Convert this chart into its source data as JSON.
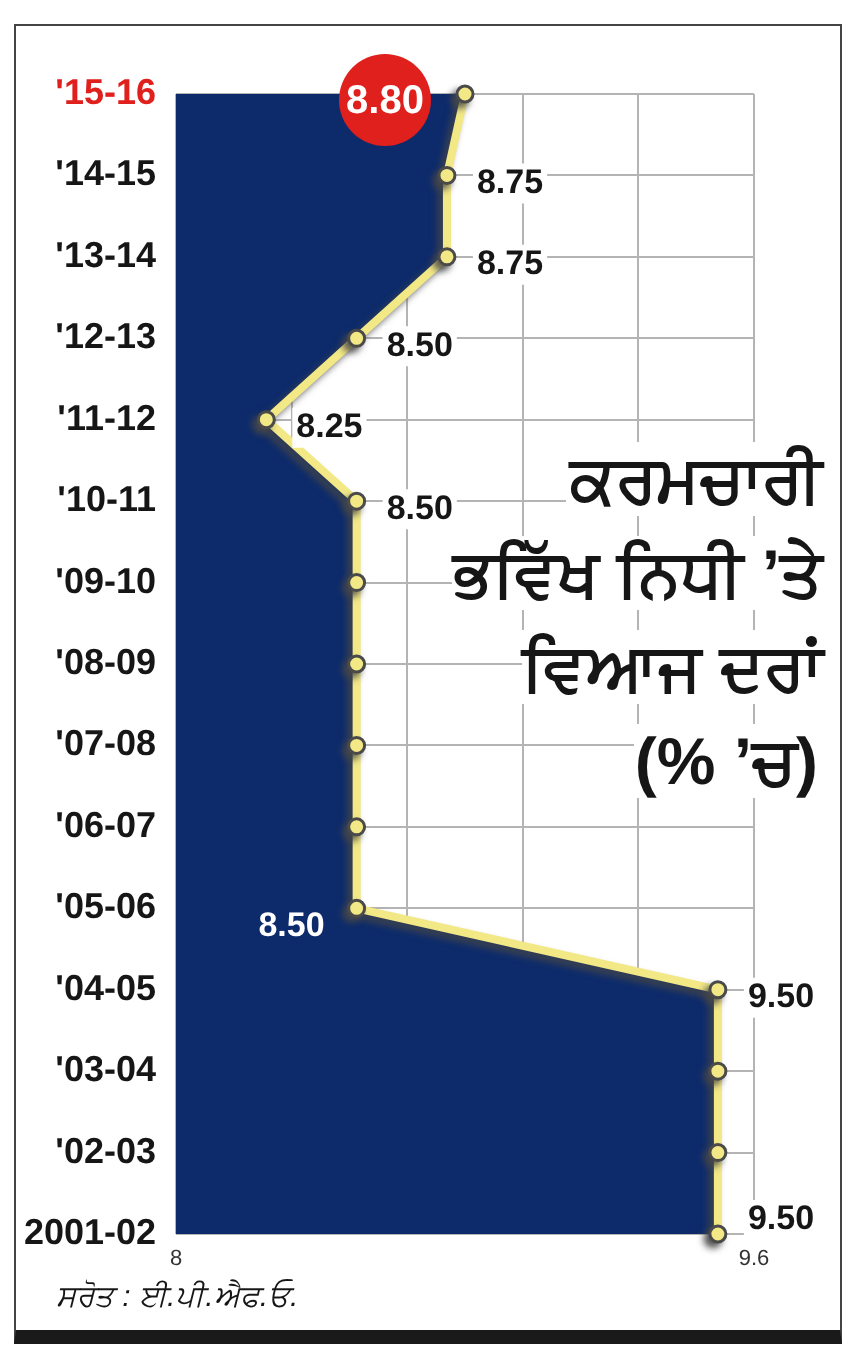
{
  "chart_data": {
    "type": "area",
    "orientation": "horizontal",
    "title": "ਕਰਮਚਾਰੀ\nਭਵਿੱਖ ਨਿਧੀ ’ਤੇ\nਵਿਆਜ ਦਰਾਂ\n(% ’ਚ)",
    "categories": [
      "'15-16",
      "'14-15",
      "'13-14",
      "'12-13",
      "'11-12",
      "'10-11",
      "'09-10",
      "'08-09",
      "'07-08",
      "'06-07",
      "'05-06",
      "'04-05",
      "'03-04",
      "'02-03",
      "2001-02"
    ],
    "series": [
      {
        "color": "#0d2b6b",
        "values": [
          8.8,
          8.75,
          8.75,
          8.5,
          8.25,
          8.5,
          8.5,
          8.5,
          8.5,
          8.5,
          8.5,
          9.5,
          9.5,
          9.5,
          9.5
        ]
      },
      {
        "type": "line",
        "color": "#f2e886",
        "marker": "circle",
        "values": [
          8.8,
          8.75,
          8.75,
          8.5,
          8.25,
          8.5,
          8.5,
          8.5,
          8.5,
          8.5,
          8.5,
          9.5,
          9.5,
          9.5,
          9.5
        ],
        "value_labels": [
          "8.80",
          "8.75",
          "8.75",
          "8.50",
          "8.25",
          "8.50",
          null,
          null,
          null,
          null,
          "8.50",
          "9.50",
          null,
          null,
          "9.50"
        ]
      }
    ],
    "xlim": [
      8,
      9.6
    ],
    "xticks": [
      8,
      {
        "value": 8.32,
        "label": null
      },
      {
        "value": 8.64,
        "label": null
      },
      {
        "value": 8.96,
        "label": null
      },
      {
        "value": 9.28,
        "label": null
      },
      9.6
    ],
    "grid": true,
    "legend": false,
    "annotations": [
      "ਸਰੋਤ : ਈ.ਪੀ.ਐਫ.ਓ."
    ]
  }
}
